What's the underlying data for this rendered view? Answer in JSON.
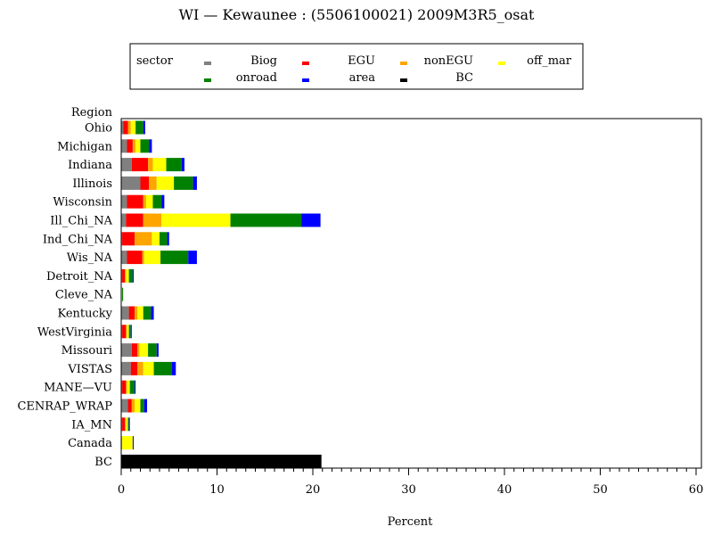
{
  "chart_data": {
    "type": "bar",
    "orientation": "horizontal",
    "stacked": true,
    "title": "WI — Kewaunee : (5506100021) 2009M3R5_osat",
    "xlabel": "Percent",
    "ylabel": "Region",
    "xlim": [
      0,
      60
    ],
    "xticks": [
      0,
      10,
      20,
      30,
      40,
      50,
      60
    ],
    "grid": false,
    "legend_title": "sector",
    "legend_position": "top-center",
    "categories": [
      "Ohio",
      "Michigan",
      "Indiana",
      "Illinois",
      "Wisconsin",
      "Ill_Chi_NA",
      "Ind_Chi_NA",
      "Wis_NA",
      "Detroit_NA",
      "Cleve_NA",
      "Kentucky",
      "WestVirginia",
      "Missouri",
      "VISTAS",
      "MANE—VU",
      "CENRAP_WRAP",
      "IA_MN",
      "Canada",
      "BC"
    ],
    "series": [
      {
        "name": "Biog",
        "color": "#808080",
        "values": [
          0.2,
          0.6,
          1.1,
          2.0,
          0.6,
          0.5,
          0.1,
          0.6,
          0.1,
          0.0,
          0.8,
          0.1,
          1.1,
          1.0,
          0.1,
          0.7,
          0.1,
          0.0,
          0.0
        ]
      },
      {
        "name": "EGU",
        "color": "#ff0000",
        "values": [
          0.5,
          0.6,
          1.7,
          0.9,
          1.7,
          1.8,
          1.3,
          1.6,
          0.3,
          0.0,
          0.6,
          0.4,
          0.6,
          0.7,
          0.4,
          0.4,
          0.3,
          0.0,
          0.0
        ]
      },
      {
        "name": "nonEGU",
        "color": "#ffa500",
        "values": [
          0.3,
          0.3,
          0.5,
          0.8,
          0.3,
          1.9,
          1.8,
          0.2,
          0.1,
          0.0,
          0.3,
          0.1,
          0.2,
          0.6,
          0.1,
          0.3,
          0.1,
          0.1,
          0.0
        ]
      },
      {
        "name": "off_mar",
        "color": "#ffff00",
        "values": [
          0.5,
          0.5,
          1.4,
          1.8,
          0.7,
          7.2,
          0.8,
          1.7,
          0.3,
          0.1,
          0.6,
          0.2,
          0.9,
          1.1,
          0.3,
          0.6,
          0.2,
          1.1,
          0.0
        ]
      },
      {
        "name": "onroad",
        "color": "#008000",
        "values": [
          0.8,
          0.9,
          1.6,
          2.0,
          0.9,
          7.4,
          0.8,
          2.9,
          0.4,
          0.1,
          0.8,
          0.2,
          0.9,
          1.9,
          0.5,
          0.4,
          0.1,
          0.0,
          0.0
        ]
      },
      {
        "name": "area",
        "color": "#0000ff",
        "values": [
          0.2,
          0.3,
          0.3,
          0.4,
          0.3,
          2.0,
          0.2,
          0.9,
          0.1,
          0.0,
          0.3,
          0.1,
          0.2,
          0.4,
          0.1,
          0.3,
          0.1,
          0.1,
          0.0
        ]
      },
      {
        "name": "BC",
        "color": "#000000",
        "values": [
          0,
          0,
          0,
          0,
          0,
          0,
          0,
          0,
          0,
          0,
          0,
          0,
          0,
          0,
          0,
          0,
          0,
          0,
          20.9
        ]
      }
    ]
  }
}
